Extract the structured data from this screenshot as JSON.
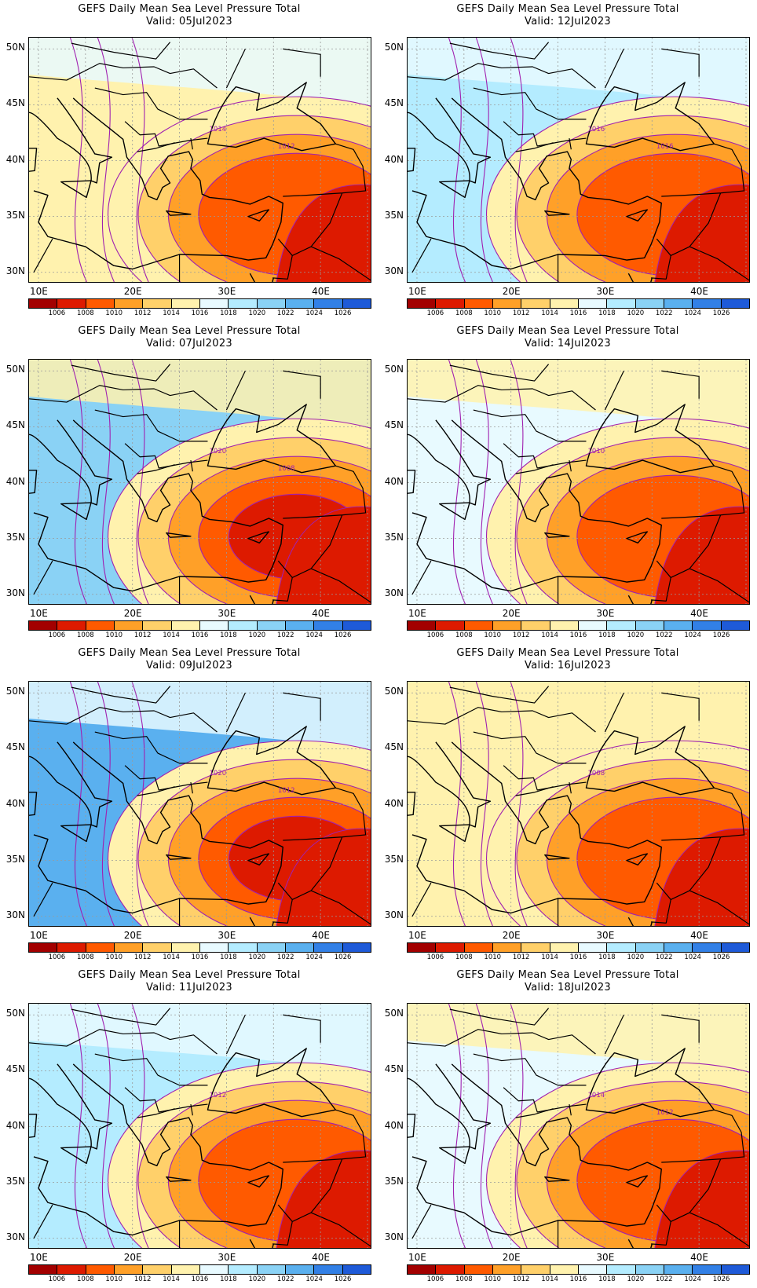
{
  "colorbar": {
    "labels": [
      "1006",
      "1008",
      "1010",
      "1012",
      "1014",
      "1016",
      "1018",
      "1020",
      "1022",
      "1024",
      "1026"
    ],
    "colors": [
      "#a30000",
      "#dd1a00",
      "#ff5a00",
      "#ffa028",
      "#ffd06a",
      "#fff2ae",
      "#e8faff",
      "#b4ecff",
      "#8ad2f5",
      "#5ab0ef",
      "#3280e6",
      "#1e5ad8"
    ]
  },
  "axes": {
    "lat_labels": [
      "50N",
      "45N",
      "40N",
      "35N",
      "30N"
    ],
    "lon_labels": [
      "10E",
      "20E",
      "30E",
      "40E"
    ]
  },
  "panels": [
    {
      "title": "GEFS Daily Mean Sea Level Pressure Total",
      "valid": "Valid: 05Jul2023",
      "contour_labels": [
        "1014",
        "1012"
      ],
      "pressure_field": {
        "west": "1014",
        "north": "1016",
        "east_center": "1008",
        "southeast": "1006"
      }
    },
    {
      "title": "GEFS Daily Mean Sea Level Pressure Total",
      "valid": "Valid: 12Jul2023",
      "contour_labels": [
        "1016",
        "1016"
      ],
      "pressure_field": {
        "west": "1018",
        "north": "1016",
        "east_center": "1008",
        "southeast": "1006"
      }
    },
    {
      "title": "GEFS Daily Mean Sea Level Pressure Total",
      "valid": "Valid: 07Jul2023",
      "contour_labels": [
        "1020",
        "1008"
      ],
      "pressure_field": {
        "west": "1020",
        "north": "1014",
        "east_center": "1006",
        "southeast": "1006"
      }
    },
    {
      "title": "GEFS Daily Mean Sea Level Pressure Total",
      "valid": "Valid: 14Jul2023",
      "contour_labels": [
        "1010"
      ],
      "pressure_field": {
        "west": "1016",
        "north": "1014",
        "east_center": "1008",
        "southeast": "1006"
      }
    },
    {
      "title": "GEFS Daily Mean Sea Level Pressure Total",
      "valid": "Valid: 09Jul2023",
      "contour_labels": [
        "1020",
        "1012"
      ],
      "pressure_field": {
        "west": "1022",
        "north": "1016",
        "east_center": "1006",
        "southeast": "1006"
      }
    },
    {
      "title": "GEFS Daily Mean Sea Level Pressure Total",
      "valid": "Valid: 16Jul2023",
      "contour_labels": [
        "1008"
      ],
      "pressure_field": {
        "west": "1014",
        "north": "1014",
        "east_center": "1008",
        "southeast": "1006"
      }
    },
    {
      "title": "GEFS Daily Mean Sea Level Pressure Total",
      "valid": "Valid: 11Jul2023",
      "contour_labels": [
        "1012"
      ],
      "pressure_field": {
        "west": "1018",
        "north": "1016",
        "east_center": "1008",
        "southeast": "1006"
      }
    },
    {
      "title": "GEFS Daily Mean Sea Level Pressure Total",
      "valid": "Valid: 18Jul2023",
      "contour_labels": [
        "1014",
        "1012"
      ],
      "pressure_field": {
        "west": "1016",
        "north": "1014",
        "east_center": "1008",
        "southeast": "1006"
      }
    }
  ]
}
